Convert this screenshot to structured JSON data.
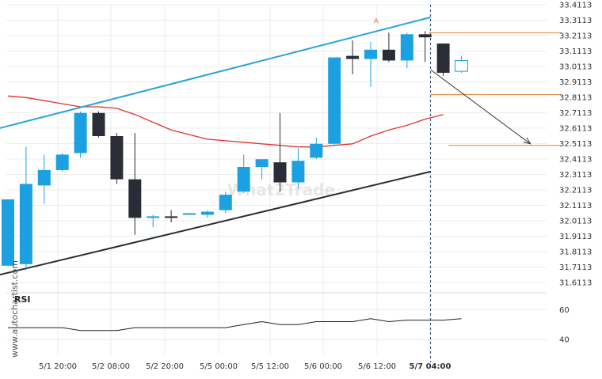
{
  "watermark": "What2Trade",
  "side_brand": "www.autochartist.com",
  "chart_data": {
    "type": "candlestick",
    "instrument_price_axis": {
      "ticks": [
        "33.4113",
        "33.3113",
        "33.2113",
        "33.1113",
        "33.0113",
        "32.9113",
        "32.8113",
        "32.7113",
        "32.6113",
        "32.5113",
        "32.4113",
        "32.3113",
        "32.2113",
        "32.1113",
        "32.0113",
        "31.9113",
        "31.8113",
        "31.7113",
        "31.6113"
      ],
      "range": [
        31.6113,
        33.4113
      ]
    },
    "time_axis": {
      "ticks": [
        "5/1 20:00",
        "5/2 08:00",
        "5/2 20:00",
        "5/5 00:00",
        "5/5 12:00",
        "5/6 00:00",
        "5/6 12:00",
        "5/7 04:00"
      ],
      "bold_tick": "5/7 04:00"
    },
    "candles": [
      {
        "o": 31.72,
        "h": 32.15,
        "l": 31.72,
        "c": 32.15
      },
      {
        "o": 31.73,
        "h": 32.49,
        "l": 31.69,
        "c": 32.25
      },
      {
        "o": 32.24,
        "h": 32.44,
        "l": 32.12,
        "c": 32.34
      },
      {
        "o": 32.34,
        "h": 32.45,
        "l": 32.33,
        "c": 32.44
      },
      {
        "o": 32.45,
        "h": 32.72,
        "l": 32.42,
        "c": 32.71
      },
      {
        "o": 32.71,
        "h": 32.72,
        "l": 32.55,
        "c": 32.56
      },
      {
        "o": 32.56,
        "h": 32.58,
        "l": 32.25,
        "c": 32.28
      },
      {
        "o": 32.28,
        "h": 32.58,
        "l": 31.92,
        "c": 32.03
      },
      {
        "o": 32.03,
        "h": 32.05,
        "l": 31.97,
        "c": 32.04
      },
      {
        "o": 32.04,
        "h": 32.08,
        "l": 32.0,
        "c": 32.03
      },
      {
        "o": 32.05,
        "h": 32.06,
        "l": 32.05,
        "c": 32.06
      },
      {
        "o": 32.05,
        "h": 32.08,
        "l": 32.03,
        "c": 32.07
      },
      {
        "o": 32.08,
        "h": 32.2,
        "l": 32.06,
        "c": 32.18
      },
      {
        "o": 32.2,
        "h": 32.44,
        "l": 32.19,
        "c": 32.36
      },
      {
        "o": 32.36,
        "h": 32.41,
        "l": 32.28,
        "c": 32.41
      },
      {
        "o": 32.39,
        "h": 32.71,
        "l": 32.2,
        "c": 32.26
      },
      {
        "o": 32.26,
        "h": 32.48,
        "l": 32.22,
        "c": 32.4
      },
      {
        "o": 32.42,
        "h": 32.55,
        "l": 32.41,
        "c": 32.51
      },
      {
        "o": 32.51,
        "h": 33.07,
        "l": 32.5,
        "c": 33.07
      },
      {
        "o": 33.08,
        "h": 33.18,
        "l": 32.96,
        "c": 33.06
      },
      {
        "o": 33.06,
        "h": 33.17,
        "l": 32.88,
        "c": 33.12
      },
      {
        "o": 33.12,
        "h": 33.23,
        "l": 33.04,
        "c": 33.05
      },
      {
        "o": 33.05,
        "h": 33.23,
        "l": 33.0,
        "c": 33.22
      },
      {
        "o": 33.22,
        "h": 33.24,
        "l": 33.04,
        "c": 33.2
      },
      {
        "o": 33.16,
        "h": 33.16,
        "l": 32.95,
        "c": 32.97
      },
      {
        "o": 32.98,
        "h": 33.08,
        "l": 32.97,
        "c": 33.05
      }
    ],
    "moving_average": [
      32.82,
      32.81,
      32.79,
      32.77,
      32.75,
      32.75,
      32.74,
      32.7,
      32.65,
      32.6,
      32.57,
      32.54,
      32.53,
      32.52,
      32.51,
      32.5,
      32.49,
      32.49,
      32.5,
      32.51,
      32.56,
      32.6,
      32.63,
      32.67,
      32.7
    ],
    "channel": {
      "upper": {
        "from": {
          "bar": -0.5,
          "price": 32.61
        },
        "to": {
          "bar": 23.3,
          "price": 33.33
        }
      },
      "lower": {
        "from": {
          "bar": -0.5,
          "price": 31.66
        },
        "to": {
          "bar": 23.3,
          "price": 32.33
        }
      }
    },
    "horizontal_levels": [
      {
        "price": 33.23,
        "from_bar": 23.2,
        "to_bar": 30.5
      },
      {
        "price": 32.83,
        "from_bar": 23.3,
        "to_bar": 30.5
      },
      {
        "price": 32.5,
        "from_bar": 24.3,
        "to_bar": 30.5
      }
    ],
    "forecast_arrow": {
      "from": {
        "bar": 23.3,
        "price": 32.99
      },
      "to": {
        "bar": 28.8,
        "price": 32.51
      }
    },
    "marker": {
      "label": "A",
      "bar": 20.3,
      "price": 33.29
    },
    "vertical_marker_bar": 23.3,
    "rsi": {
      "label": "RSI",
      "ticks": [
        "60",
        "40"
      ],
      "range": [
        30,
        65
      ],
      "values": [
        48,
        48,
        48,
        48,
        46,
        46,
        46,
        48,
        48,
        48,
        48,
        48,
        48,
        50,
        52,
        50,
        50,
        52,
        52,
        52,
        54,
        52,
        53,
        53,
        53,
        54
      ]
    },
    "colors": {
      "bull": "#1ba1e2",
      "bear": "#2b2d36",
      "upper_channel": "#29a3d8",
      "lower_channel": "#2b2d36",
      "moving_average": "#e0342c",
      "levels": "#e8812f",
      "arrow": "#333333",
      "marker": "#e8734a"
    }
  }
}
